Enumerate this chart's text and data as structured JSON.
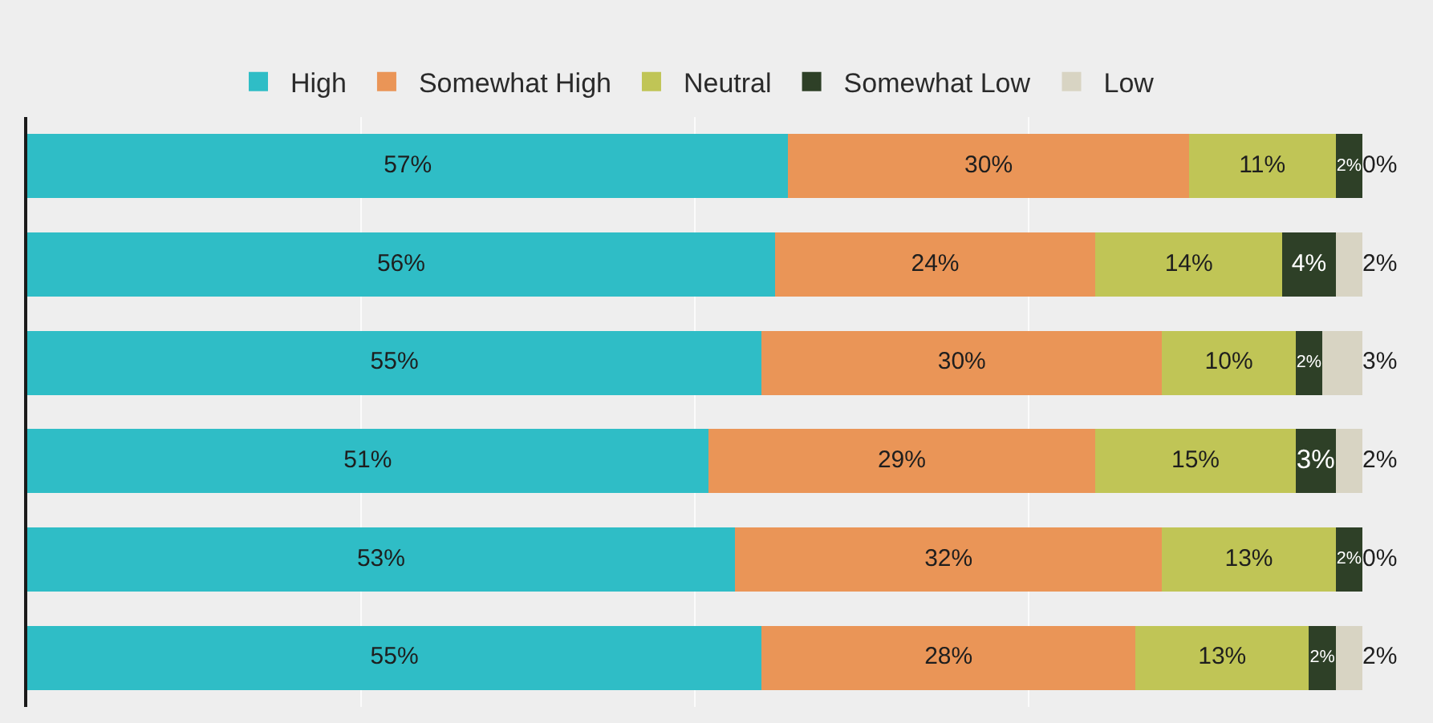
{
  "chart_data": {
    "type": "bar",
    "orientation": "horizontal",
    "stacked": true,
    "categories": [
      null,
      null,
      null,
      null,
      null,
      null
    ],
    "series": [
      {
        "name": "High",
        "color": "#2fbdc6",
        "values": [
          57,
          56,
          55,
          51,
          53,
          55
        ],
        "value_labels": [
          "57%",
          "56%",
          "55%",
          "51%",
          "53%",
          "55%"
        ]
      },
      {
        "name": "Somewhat High",
        "color": "#ea9557",
        "values": [
          30,
          24,
          30,
          29,
          32,
          28
        ],
        "value_labels": [
          "30%",
          "24%",
          "30%",
          "29%",
          "32%",
          "28%"
        ]
      },
      {
        "name": "Neutral",
        "color": "#c0c556",
        "values": [
          11,
          14,
          10,
          15,
          13,
          13
        ],
        "value_labels": [
          "11%",
          "14%",
          "10%",
          "15%",
          "13%",
          "13%"
        ]
      },
      {
        "name": "Somewhat Low",
        "color": "#2e4027",
        "values": [
          2,
          4,
          2,
          3,
          2,
          2
        ],
        "value_labels": [
          "2%",
          "4%",
          "2%",
          "3%",
          "2%",
          "2%"
        ]
      },
      {
        "name": "Low",
        "color": "#d8d4c3",
        "values": [
          0,
          2,
          3,
          2,
          0,
          2
        ],
        "value_labels": [
          "0%",
          "2%",
          "3%",
          "2%",
          "0%",
          "2%"
        ]
      }
    ],
    "xlim": [
      0,
      100
    ],
    "xticks": [
      {
        "value": 25,
        "label": null
      },
      {
        "value": 50,
        "label": null
      },
      {
        "value": 75,
        "label": null
      }
    ],
    "grid": "x",
    "legend": "top"
  }
}
